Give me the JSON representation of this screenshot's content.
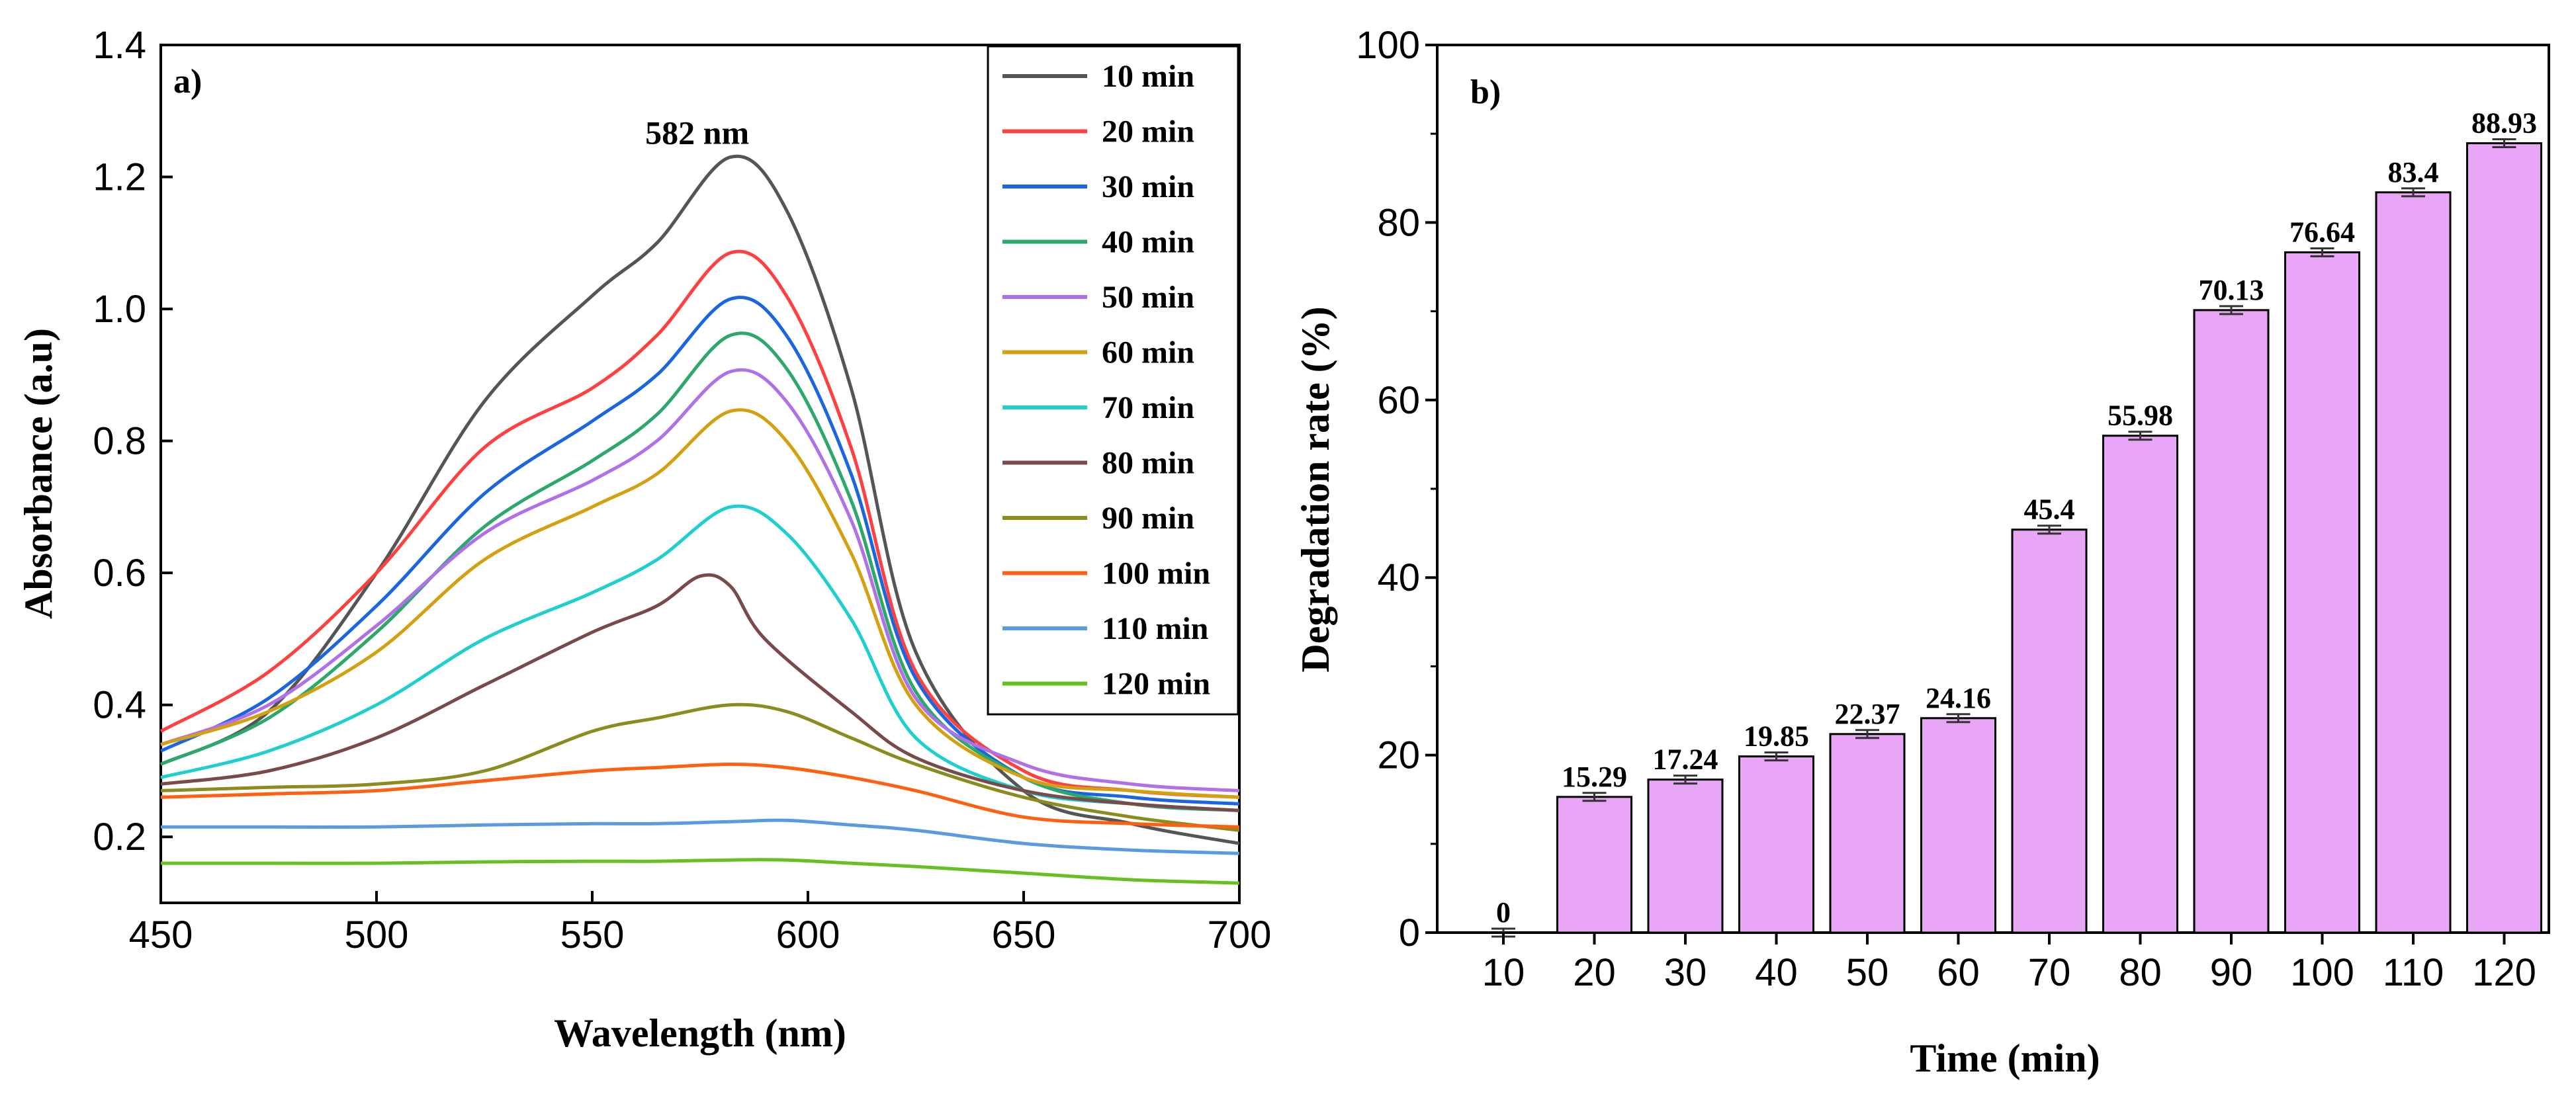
{
  "chart_data": [
    {
      "type": "line",
      "panel_label": "a)",
      "xlabel": "Wavelength (nm)",
      "ylabel": "Absorbance (a.u)",
      "xlim": [
        450,
        700
      ],
      "ylim": [
        0.1,
        1.4
      ],
      "xticks": [
        450,
        500,
        550,
        600,
        650,
        700
      ],
      "yticks": [
        0.2,
        0.4,
        0.6,
        0.8,
        1.0,
        1.2,
        1.4
      ],
      "ytick_labels": [
        "0.2",
        "0.4",
        "0.6",
        "0.8",
        "1.0",
        "1.2",
        "1.4"
      ],
      "legend_position": "top-right",
      "annotation": {
        "text": "582 nm",
        "x": 582,
        "y": 1.27
      },
      "series": [
        {
          "name": "10 min",
          "color": "#555555",
          "x": [
            450,
            475,
            500,
            525,
            550,
            565,
            582,
            595,
            610,
            625,
            650,
            675,
            700
          ],
          "y": [
            0.31,
            0.39,
            0.6,
            0.86,
            1.02,
            1.1,
            1.23,
            1.15,
            0.88,
            0.48,
            0.27,
            0.22,
            0.19
          ]
        },
        {
          "name": "20 min",
          "color": "#ff4040",
          "x": [
            450,
            475,
            500,
            525,
            550,
            565,
            582,
            595,
            610,
            625,
            650,
            675,
            700
          ],
          "y": [
            0.36,
            0.45,
            0.6,
            0.79,
            0.88,
            0.96,
            1.085,
            1.02,
            0.79,
            0.45,
            0.3,
            0.27,
            0.26
          ]
        },
        {
          "name": "30 min",
          "color": "#1a66e0",
          "x": [
            450,
            475,
            500,
            525,
            550,
            565,
            582,
            595,
            610,
            625,
            650,
            675,
            700
          ],
          "y": [
            0.33,
            0.41,
            0.55,
            0.72,
            0.83,
            0.9,
            1.015,
            0.96,
            0.75,
            0.44,
            0.29,
            0.26,
            0.25
          ]
        },
        {
          "name": "40 min",
          "color": "#2ca86a",
          "x": [
            450,
            475,
            500,
            525,
            550,
            565,
            582,
            595,
            610,
            625,
            650,
            675,
            700
          ],
          "y": [
            0.31,
            0.38,
            0.51,
            0.67,
            0.77,
            0.84,
            0.96,
            0.91,
            0.71,
            0.42,
            0.29,
            0.25,
            0.24
          ]
        },
        {
          "name": "50 min",
          "color": "#b070e8",
          "x": [
            450,
            475,
            500,
            525,
            550,
            565,
            582,
            595,
            610,
            625,
            650,
            675,
            700
          ],
          "y": [
            0.34,
            0.4,
            0.52,
            0.66,
            0.74,
            0.8,
            0.905,
            0.86,
            0.68,
            0.41,
            0.31,
            0.28,
            0.27
          ]
        },
        {
          "name": "60 min",
          "color": "#d4a010",
          "x": [
            450,
            475,
            500,
            525,
            550,
            565,
            582,
            595,
            610,
            625,
            650,
            675,
            700
          ],
          "y": [
            0.34,
            0.39,
            0.48,
            0.62,
            0.7,
            0.75,
            0.845,
            0.8,
            0.63,
            0.4,
            0.29,
            0.27,
            0.26
          ]
        },
        {
          "name": "70 min",
          "color": "#1ecfcf",
          "x": [
            450,
            475,
            500,
            525,
            550,
            565,
            582,
            595,
            610,
            625,
            650,
            675,
            700
          ],
          "y": [
            0.29,
            0.33,
            0.4,
            0.5,
            0.57,
            0.62,
            0.7,
            0.66,
            0.53,
            0.35,
            0.27,
            0.25,
            0.24
          ]
        },
        {
          "name": "80 min",
          "color": "#7a4a4a",
          "x": [
            450,
            475,
            500,
            525,
            550,
            565,
            575,
            582,
            590,
            610,
            625,
            650,
            675,
            700
          ],
          "y": [
            0.28,
            0.3,
            0.35,
            0.43,
            0.51,
            0.55,
            0.595,
            0.58,
            0.5,
            0.39,
            0.32,
            0.27,
            0.25,
            0.24
          ]
        },
        {
          "name": "90 min",
          "color": "#8c8c1e",
          "x": [
            450,
            475,
            500,
            525,
            550,
            565,
            582,
            595,
            610,
            625,
            650,
            675,
            700
          ],
          "y": [
            0.27,
            0.275,
            0.28,
            0.3,
            0.36,
            0.38,
            0.4,
            0.39,
            0.35,
            0.31,
            0.26,
            0.23,
            0.21
          ]
        },
        {
          "name": "100 min",
          "color": "#ff6010",
          "x": [
            450,
            475,
            500,
            525,
            550,
            565,
            582,
            595,
            610,
            625,
            650,
            675,
            700
          ],
          "y": [
            0.26,
            0.265,
            0.27,
            0.285,
            0.3,
            0.305,
            0.31,
            0.305,
            0.29,
            0.27,
            0.23,
            0.22,
            0.215
          ]
        },
        {
          "name": "110 min",
          "color": "#5a9be0",
          "x": [
            450,
            475,
            500,
            525,
            550,
            565,
            582,
            595,
            610,
            625,
            650,
            675,
            700
          ],
          "y": [
            0.215,
            0.215,
            0.215,
            0.218,
            0.22,
            0.22,
            0.223,
            0.225,
            0.218,
            0.21,
            0.19,
            0.18,
            0.175
          ]
        },
        {
          "name": "120 min",
          "color": "#66c020",
          "x": [
            450,
            475,
            500,
            525,
            550,
            565,
            582,
            595,
            610,
            625,
            650,
            675,
            700
          ],
          "y": [
            0.16,
            0.16,
            0.16,
            0.162,
            0.163,
            0.163,
            0.165,
            0.165,
            0.16,
            0.155,
            0.145,
            0.135,
            0.13
          ]
        }
      ]
    },
    {
      "type": "bar",
      "panel_label": "b)",
      "xlabel": "Time (min)",
      "ylabel": "Degradation rate (%)",
      "ylim": [
        0,
        100
      ],
      "yticks": [
        0,
        20,
        40,
        60,
        80,
        100
      ],
      "categories": [
        "10",
        "20",
        "30",
        "40",
        "50",
        "60",
        "70",
        "80",
        "90",
        "100",
        "110",
        "120"
      ],
      "values": [
        0,
        15.29,
        17.24,
        19.85,
        22.37,
        24.16,
        45.4,
        55.98,
        70.13,
        76.64,
        83.4,
        88.93
      ],
      "value_labels": [
        "0",
        "15.29",
        "17.24",
        "19.85",
        "22.37",
        "24.16",
        "45.4",
        "55.98",
        "70.13",
        "76.64",
        "83.4",
        "88.93"
      ],
      "bar_color": "#e9a6f6",
      "bar_edge_color": "#000000",
      "error_bar_color": "#333333"
    }
  ]
}
